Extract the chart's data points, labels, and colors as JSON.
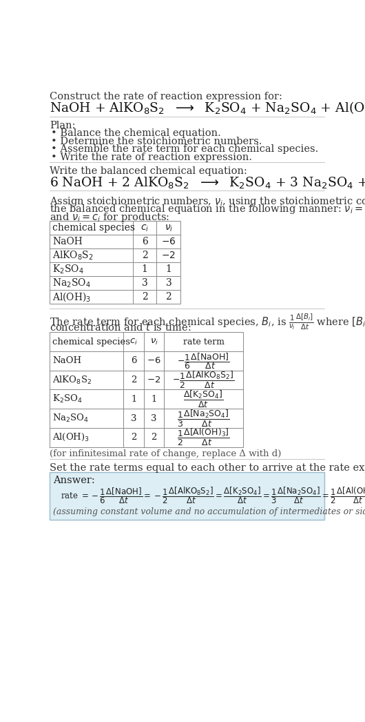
{
  "bg_color": "#ffffff",
  "text_color": "#222222",
  "gray_text": "#555555",
  "answer_bg": "#ddeef5",
  "answer_border": "#99bbcc",
  "title_line1": "Construct the rate of reaction expression for:",
  "plan_header": "Plan:",
  "plan_items": [
    "• Balance the chemical equation.",
    "• Determine the stoichiometric numbers.",
    "• Assemble the rate term for each chemical species.",
    "• Write the rate of reaction expression."
  ],
  "balanced_header": "Write the balanced chemical equation:",
  "set_equal_header": "Set the rate terms equal to each other to arrive at the rate expression:",
  "answer_label": "Answer:",
  "footnote": "(assuming constant volume and no accumulation of intermediates or side products)",
  "infinitesimal_note": "(for infinitesimal rate of change, replace Δ with d)"
}
